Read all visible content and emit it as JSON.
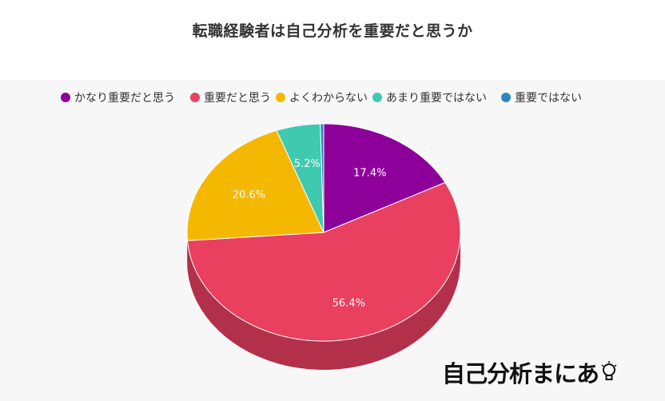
{
  "chart_data": {
    "type": "pie",
    "title": "転職経験者は自己分析を重要だと思うか",
    "categories": [
      "かなり重要だと思う",
      "重要だと思う",
      "よくわからない",
      "あまり重要ではない",
      "重要ではない"
    ],
    "values": [
      17.4,
      56.4,
      20.6,
      5.2,
      0.4
    ],
    "value_labels": [
      "17.4%",
      "56.4%",
      "20.6%",
      "5.2%",
      ""
    ],
    "colors": [
      "#8e009a",
      "#e8405e",
      "#f5b800",
      "#3fcab0",
      "#2e86c1"
    ],
    "side_colors": [
      "#6a0073",
      "#b3304a",
      "#b88a00",
      "#2f9885",
      "#22648f"
    ],
    "legend_placement": "top",
    "three_d": true
  },
  "watermark": {
    "text": "自己分析まにあ",
    "icon": "lightbulb-icon"
  }
}
